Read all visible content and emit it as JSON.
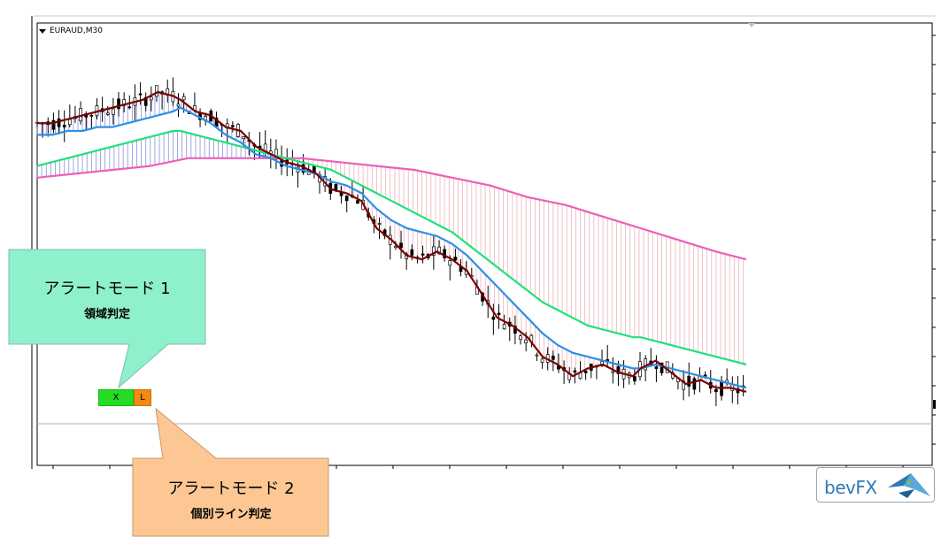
{
  "symbol": "EURAUD,M30",
  "callout_1": {
    "title": "アラートモード 1",
    "subtitle": "領域判定"
  },
  "callout_2": {
    "title": "アラートモード 2",
    "subtitle": "個別ライン判定"
  },
  "buttons": {
    "x_label": "X",
    "l_label": "L"
  },
  "logo": {
    "text": "bevFX"
  },
  "colors": {
    "fast_ma": "#7a0000",
    "mid_ma": "#2d8fe6",
    "slow_ma": "#22e07a",
    "slowest_ma": "#ee5fb8",
    "cloud_bull": "#6f74d8",
    "cloud_bear": "#e8a0a8",
    "callout_1_fill": "#8ff0cc",
    "callout_2_fill": "#fcc792"
  },
  "chart_data": {
    "type": "line",
    "title": "",
    "x_domain": [
      0,
      100
    ],
    "price_domain": [
      0,
      100
    ],
    "series": [
      {
        "values": [
          [
            0,
            82
          ],
          [
            2,
            82
          ],
          [
            4,
            83
          ],
          [
            6,
            84
          ],
          [
            8,
            85
          ],
          [
            10,
            86
          ],
          [
            12,
            87
          ],
          [
            14,
            88
          ],
          [
            16,
            90
          ],
          [
            18,
            89
          ],
          [
            19,
            88
          ],
          [
            21,
            85
          ],
          [
            23,
            84
          ],
          [
            25,
            81
          ],
          [
            27,
            80
          ],
          [
            29,
            76
          ],
          [
            31,
            74
          ],
          [
            33,
            72
          ],
          [
            35,
            71
          ],
          [
            37,
            69
          ],
          [
            39,
            65
          ],
          [
            41,
            64
          ],
          [
            43,
            62
          ],
          [
            45,
            55
          ],
          [
            47,
            52
          ],
          [
            49,
            48
          ],
          [
            51,
            47
          ],
          [
            53,
            49
          ],
          [
            55,
            47
          ],
          [
            57,
            44
          ],
          [
            59,
            38
          ],
          [
            61,
            32
          ],
          [
            63,
            30
          ],
          [
            65,
            27
          ],
          [
            67,
            22
          ],
          [
            69,
            20
          ],
          [
            71,
            17
          ],
          [
            73,
            19
          ],
          [
            75,
            20
          ],
          [
            77,
            18
          ],
          [
            79,
            17
          ],
          [
            80,
            19
          ],
          [
            82,
            21
          ],
          [
            84,
            18
          ],
          [
            86,
            15
          ],
          [
            88,
            16
          ],
          [
            90,
            14
          ],
          [
            92,
            14
          ],
          [
            94,
            13
          ]
        ]
      },
      {
        "values": [
          [
            0,
            79
          ],
          [
            2,
            79
          ],
          [
            4,
            80
          ],
          [
            6,
            80
          ],
          [
            8,
            81
          ],
          [
            10,
            81
          ],
          [
            12,
            82
          ],
          [
            14,
            83
          ],
          [
            16,
            84
          ],
          [
            18,
            85
          ],
          [
            19,
            86
          ],
          [
            21,
            84
          ],
          [
            23,
            82
          ],
          [
            25,
            79
          ],
          [
            27,
            77
          ],
          [
            29,
            74
          ],
          [
            31,
            73
          ],
          [
            33,
            71
          ],
          [
            35,
            70
          ],
          [
            37,
            69
          ],
          [
            39,
            67
          ],
          [
            41,
            66
          ],
          [
            43,
            64
          ],
          [
            45,
            60
          ],
          [
            47,
            57
          ],
          [
            49,
            55
          ],
          [
            51,
            54
          ],
          [
            53,
            53
          ],
          [
            55,
            51
          ],
          [
            57,
            48
          ],
          [
            59,
            44
          ],
          [
            61,
            40
          ],
          [
            63,
            36
          ],
          [
            65,
            32
          ],
          [
            67,
            28
          ],
          [
            69,
            25
          ],
          [
            71,
            23
          ],
          [
            73,
            22
          ],
          [
            75,
            21
          ],
          [
            77,
            20
          ],
          [
            79,
            19
          ],
          [
            80,
            19
          ],
          [
            82,
            20
          ],
          [
            84,
            19
          ],
          [
            86,
            18
          ],
          [
            88,
            17
          ],
          [
            90,
            16
          ],
          [
            92,
            15
          ],
          [
            94,
            14
          ]
        ]
      },
      {
        "values": [
          [
            0,
            71
          ],
          [
            2,
            72
          ],
          [
            4,
            73
          ],
          [
            6,
            74
          ],
          [
            8,
            75
          ],
          [
            10,
            76
          ],
          [
            12,
            77
          ],
          [
            14,
            78
          ],
          [
            16,
            79
          ],
          [
            18,
            80
          ],
          [
            19,
            80
          ],
          [
            21,
            79
          ],
          [
            23,
            78
          ],
          [
            25,
            77
          ],
          [
            27,
            76
          ],
          [
            29,
            75
          ],
          [
            31,
            74
          ],
          [
            33,
            73
          ],
          [
            35,
            72
          ],
          [
            37,
            71
          ],
          [
            39,
            70
          ],
          [
            41,
            68
          ],
          [
            43,
            66
          ],
          [
            45,
            64
          ],
          [
            47,
            62
          ],
          [
            49,
            60
          ],
          [
            51,
            58
          ],
          [
            53,
            56
          ],
          [
            55,
            54
          ],
          [
            57,
            51
          ],
          [
            59,
            48
          ],
          [
            61,
            45
          ],
          [
            63,
            42
          ],
          [
            65,
            39
          ],
          [
            67,
            36
          ],
          [
            69,
            34
          ],
          [
            71,
            32
          ],
          [
            73,
            30
          ],
          [
            75,
            29
          ],
          [
            77,
            28
          ],
          [
            79,
            27
          ],
          [
            80,
            27
          ],
          [
            82,
            26
          ],
          [
            84,
            25
          ],
          [
            86,
            24
          ],
          [
            88,
            23
          ],
          [
            90,
            22
          ],
          [
            92,
            21
          ],
          [
            94,
            20
          ]
        ]
      },
      {
        "values": [
          [
            0,
            68
          ],
          [
            5,
            69
          ],
          [
            10,
            70
          ],
          [
            15,
            71
          ],
          [
            20,
            73
          ],
          [
            25,
            73
          ],
          [
            30,
            73
          ],
          [
            35,
            73
          ],
          [
            40,
            72
          ],
          [
            45,
            71
          ],
          [
            50,
            70
          ],
          [
            55,
            68
          ],
          [
            60,
            66
          ],
          [
            65,
            63
          ],
          [
            70,
            61
          ],
          [
            75,
            58
          ],
          [
            80,
            55
          ],
          [
            85,
            52
          ],
          [
            90,
            49
          ],
          [
            94,
            47
          ]
        ]
      }
    ]
  }
}
